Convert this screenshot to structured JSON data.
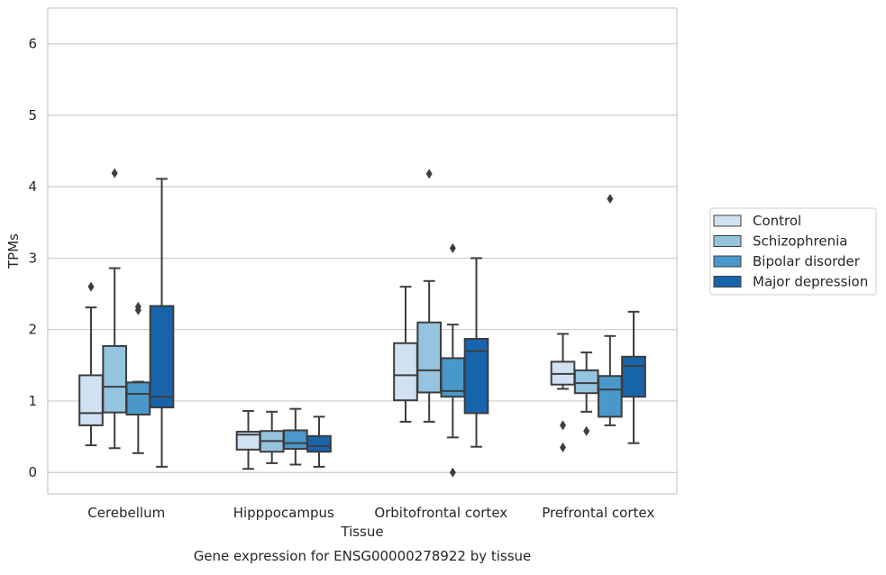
{
  "chart_data": {
    "type": "box",
    "title": "",
    "caption": "Gene expression for ENSG00000278922 by tissue",
    "xlabel": "Tissue",
    "ylabel": "TPMs",
    "ylim": [
      -0.3,
      6.5
    ],
    "yticks": [
      0,
      1,
      2,
      3,
      4,
      5,
      6
    ],
    "grid": "horizontal",
    "legend_position": "right",
    "categories": [
      "Cerebellum",
      "Hipppocampus",
      "Orbitofrontal cortex",
      "Prefrontal cortex"
    ],
    "series": [
      {
        "name": "Control",
        "color": "#d0e1f2",
        "boxes": [
          {
            "whislo": 0.38,
            "q1": 0.66,
            "med": 0.83,
            "q3": 1.36,
            "whishi": 2.31,
            "fliers": [
              2.6
            ]
          },
          {
            "whislo": 0.05,
            "q1": 0.32,
            "med": 0.53,
            "q3": 0.57,
            "whishi": 0.86,
            "fliers": []
          },
          {
            "whislo": 0.71,
            "q1": 1.01,
            "med": 1.36,
            "q3": 1.81,
            "whishi": 2.6,
            "fliers": []
          },
          {
            "whislo": 1.17,
            "q1": 1.23,
            "med": 1.38,
            "q3": 1.55,
            "whishi": 1.94,
            "fliers": [
              0.66,
              0.35
            ]
          }
        ]
      },
      {
        "name": "Schizophrenia",
        "color": "#94c4df",
        "boxes": [
          {
            "whislo": 0.34,
            "q1": 0.84,
            "med": 1.2,
            "q3": 1.77,
            "whishi": 2.86,
            "fliers": [
              4.19
            ]
          },
          {
            "whislo": 0.13,
            "q1": 0.29,
            "med": 0.44,
            "q3": 0.58,
            "whishi": 0.85,
            "fliers": []
          },
          {
            "whislo": 0.71,
            "q1": 1.12,
            "med": 1.43,
            "q3": 2.1,
            "whishi": 2.68,
            "fliers": [
              4.18
            ]
          },
          {
            "whislo": 0.85,
            "q1": 1.11,
            "med": 1.25,
            "q3": 1.43,
            "whishi": 1.68,
            "fliers": [
              0.58
            ]
          }
        ]
      },
      {
        "name": "Bipolar disorder",
        "color": "#4a98c9",
        "boxes": [
          {
            "whislo": 0.27,
            "q1": 0.81,
            "med": 1.1,
            "q3": 1.26,
            "whishi": 1.27,
            "fliers": [
              2.32,
              2.27
            ]
          },
          {
            "whislo": 0.11,
            "q1": 0.33,
            "med": 0.41,
            "q3": 0.59,
            "whishi": 0.89,
            "fliers": []
          },
          {
            "whislo": 0.49,
            "q1": 1.06,
            "med": 1.14,
            "q3": 1.6,
            "whishi": 2.07,
            "fliers": [
              3.14,
              0.0
            ]
          },
          {
            "whislo": 0.66,
            "q1": 0.78,
            "med": 1.16,
            "q3": 1.35,
            "whishi": 1.91,
            "fliers": [
              3.83
            ]
          }
        ]
      },
      {
        "name": "Major depression",
        "color": "#1764ab",
        "boxes": [
          {
            "whislo": 0.08,
            "q1": 0.91,
            "med": 1.06,
            "q3": 2.33,
            "whishi": 4.11,
            "fliers": []
          },
          {
            "whislo": 0.08,
            "q1": 0.29,
            "med": 0.37,
            "q3": 0.51,
            "whishi": 0.78,
            "fliers": []
          },
          {
            "whislo": 0.36,
            "q1": 0.83,
            "med": 1.7,
            "q3": 1.87,
            "whishi": 3.0,
            "fliers": []
          },
          {
            "whislo": 0.41,
            "q1": 1.06,
            "med": 1.49,
            "q3": 1.62,
            "whishi": 2.25,
            "fliers": []
          }
        ]
      }
    ]
  }
}
